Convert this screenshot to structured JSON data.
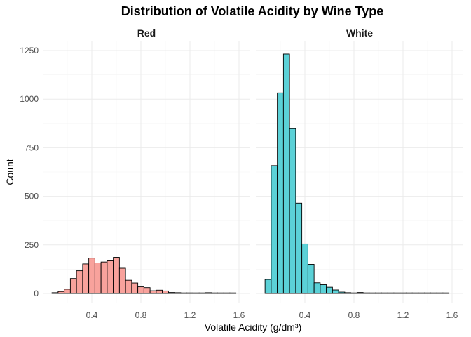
{
  "chart_data": {
    "type": "bar",
    "title": "Distribution of Volatile Acidity by Wine Type",
    "xlabel": "Volatile Acidity (g/dm³)",
    "ylabel": "Count",
    "xlim": [
      0.08,
      1.6
    ],
    "ylim": [
      0,
      1250
    ],
    "x_ticks": [
      0.4,
      0.8,
      1.2,
      1.6
    ],
    "y_ticks": [
      0,
      250,
      500,
      750,
      1000,
      1250
    ],
    "bin_width": 0.05,
    "grid": true,
    "legend": "none",
    "panels": [
      {
        "name": "Red",
        "color": "#F8A29C",
        "bins": [
          {
            "x": 0.1,
            "count": 4
          },
          {
            "x": 0.15,
            "count": 10
          },
          {
            "x": 0.2,
            "count": 22
          },
          {
            "x": 0.25,
            "count": 77
          },
          {
            "x": 0.3,
            "count": 117
          },
          {
            "x": 0.35,
            "count": 152
          },
          {
            "x": 0.4,
            "count": 182
          },
          {
            "x": 0.45,
            "count": 157
          },
          {
            "x": 0.5,
            "count": 162
          },
          {
            "x": 0.55,
            "count": 168
          },
          {
            "x": 0.6,
            "count": 186
          },
          {
            "x": 0.65,
            "count": 130
          },
          {
            "x": 0.7,
            "count": 68
          },
          {
            "x": 0.75,
            "count": 54
          },
          {
            "x": 0.8,
            "count": 34
          },
          {
            "x": 0.85,
            "count": 30
          },
          {
            "x": 0.9,
            "count": 14
          },
          {
            "x": 0.95,
            "count": 17
          },
          {
            "x": 1.0,
            "count": 13
          },
          {
            "x": 1.05,
            "count": 5
          },
          {
            "x": 1.1,
            "count": 4
          },
          {
            "x": 1.15,
            "count": 2
          },
          {
            "x": 1.2,
            "count": 3
          },
          {
            "x": 1.25,
            "count": 1
          },
          {
            "x": 1.3,
            "count": 0
          },
          {
            "x": 1.35,
            "count": 4
          },
          {
            "x": 1.4,
            "count": 1
          },
          {
            "x": 1.45,
            "count": 0
          },
          {
            "x": 1.5,
            "count": 0
          },
          {
            "x": 1.55,
            "count": 1
          }
        ]
      },
      {
        "name": "White",
        "color": "#5BD1D7",
        "bins": [
          {
            "x": 0.1,
            "count": 72
          },
          {
            "x": 0.15,
            "count": 658
          },
          {
            "x": 0.2,
            "count": 1032
          },
          {
            "x": 0.25,
            "count": 1232
          },
          {
            "x": 0.3,
            "count": 848
          },
          {
            "x": 0.35,
            "count": 465
          },
          {
            "x": 0.4,
            "count": 255
          },
          {
            "x": 0.45,
            "count": 150
          },
          {
            "x": 0.5,
            "count": 55
          },
          {
            "x": 0.55,
            "count": 45
          },
          {
            "x": 0.6,
            "count": 32
          },
          {
            "x": 0.65,
            "count": 18
          },
          {
            "x": 0.7,
            "count": 7
          },
          {
            "x": 0.75,
            "count": 4
          },
          {
            "x": 0.8,
            "count": 2
          },
          {
            "x": 0.85,
            "count": 5
          },
          {
            "x": 0.9,
            "count": 3
          },
          {
            "x": 0.95,
            "count": 1
          },
          {
            "x": 1.0,
            "count": 1
          },
          {
            "x": 1.05,
            "count": 1
          },
          {
            "x": 1.1,
            "count": 1
          },
          {
            "x": 1.15,
            "count": 0
          },
          {
            "x": 1.2,
            "count": 0
          },
          {
            "x": 1.25,
            "count": 0
          },
          {
            "x": 1.3,
            "count": 0
          },
          {
            "x": 1.35,
            "count": 0
          },
          {
            "x": 1.4,
            "count": 0
          },
          {
            "x": 1.45,
            "count": 0
          },
          {
            "x": 1.5,
            "count": 0
          },
          {
            "x": 1.55,
            "count": 1
          }
        ]
      }
    ]
  }
}
